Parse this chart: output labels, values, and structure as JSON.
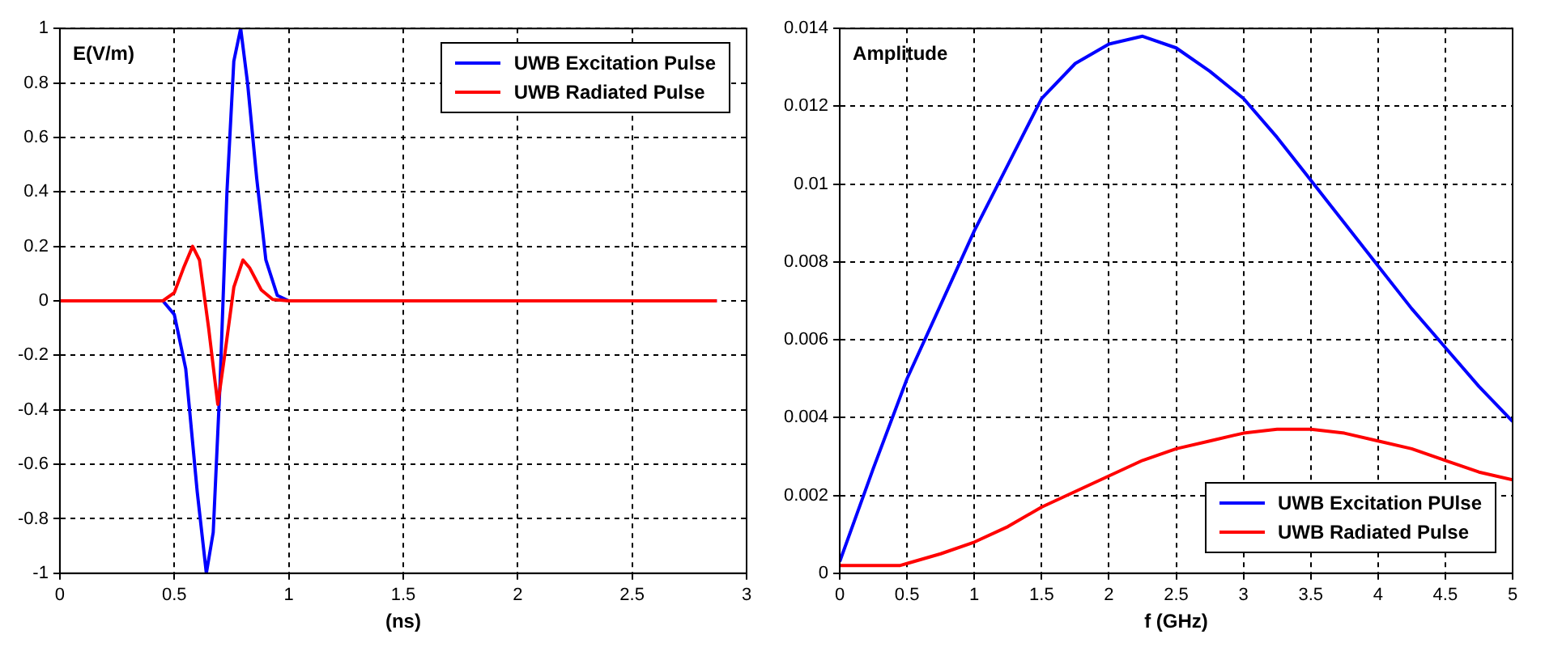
{
  "chart_data": [
    {
      "type": "line",
      "ylabel": "E(V/m)",
      "xlabel": "(ns)",
      "xlim": [
        0,
        3
      ],
      "xticks": [
        0,
        0.5,
        1,
        1.5,
        2,
        2.5,
        3
      ],
      "ylim": [
        -1,
        1
      ],
      "yticks": [
        -1,
        -0.8,
        -0.6,
        -0.4,
        -0.2,
        0,
        0.2,
        0.4,
        0.6,
        0.8,
        1
      ],
      "grid": true,
      "legend": "top right",
      "line_style": "solid",
      "series": [
        {
          "name": "UWB Excitation Pulse",
          "color": "#0000ff",
          "x": [
            0,
            0.45,
            0.5,
            0.55,
            0.6,
            0.64,
            0.67,
            0.7,
            0.73,
            0.76,
            0.79,
            0.82,
            0.86,
            0.9,
            0.95,
            1.0,
            2.87
          ],
          "values": [
            0,
            0,
            -0.05,
            -0.25,
            -0.7,
            -1,
            -0.85,
            -0.3,
            0.4,
            0.88,
            1.0,
            0.8,
            0.45,
            0.15,
            0.02,
            0,
            0
          ]
        },
        {
          "name": "UWB Radiated Pulse",
          "color": "#ff0000",
          "x": [
            0,
            0.45,
            0.5,
            0.54,
            0.58,
            0.61,
            0.65,
            0.69,
            0.72,
            0.76,
            0.8,
            0.83,
            0.88,
            0.93,
            1.0,
            2.87
          ],
          "values": [
            0,
            0,
            0.03,
            0.12,
            0.2,
            0.15,
            -0.1,
            -0.38,
            -0.2,
            0.05,
            0.15,
            0.12,
            0.04,
            0.005,
            0,
            0
          ]
        }
      ]
    },
    {
      "type": "line",
      "ylabel": "Amplitude",
      "xlabel": "f (GHz)",
      "xlim": [
        0,
        5
      ],
      "xticks": [
        0,
        0.5,
        1,
        1.5,
        2,
        2.5,
        3,
        3.5,
        4,
        4.5,
        5
      ],
      "ylim": [
        0,
        0.014
      ],
      "yticks": [
        0,
        0.002,
        0.004,
        0.006,
        0.008,
        0.01,
        0.012,
        0.014
      ],
      "grid": true,
      "legend": "bottom right",
      "line_style": "solid",
      "series": [
        {
          "name": "UWB Excitation PUlse",
          "color": "#0000ff",
          "x": [
            0,
            0.25,
            0.5,
            0.75,
            1,
            1.25,
            1.5,
            1.75,
            2,
            2.25,
            2.5,
            2.75,
            3,
            3.25,
            3.5,
            3.75,
            4,
            4.25,
            4.5,
            4.75,
            5
          ],
          "values": [
            0.0003,
            0.0027,
            0.005,
            0.0069,
            0.0088,
            0.0105,
            0.0122,
            0.0131,
            0.0136,
            0.0138,
            0.0135,
            0.0129,
            0.0122,
            0.0112,
            0.0101,
            0.009,
            0.0079,
            0.0068,
            0.0058,
            0.0048,
            0.0039
          ]
        },
        {
          "name": "UWB Radiated Pulse",
          "color": "#ff0000",
          "x": [
            0,
            0.45,
            0.5,
            0.75,
            1,
            1.25,
            1.5,
            1.75,
            2,
            2.25,
            2.5,
            2.75,
            3,
            3.25,
            3.5,
            3.75,
            4,
            4.25,
            4.5,
            4.75,
            5
          ],
          "values": [
            0.0002,
            0.0002,
            0.00025,
            0.0005,
            0.0008,
            0.0012,
            0.0017,
            0.0021,
            0.0025,
            0.0029,
            0.0032,
            0.0034,
            0.0036,
            0.0037,
            0.0037,
            0.0036,
            0.0034,
            0.0032,
            0.0029,
            0.0026,
            0.0024
          ]
        }
      ]
    }
  ]
}
